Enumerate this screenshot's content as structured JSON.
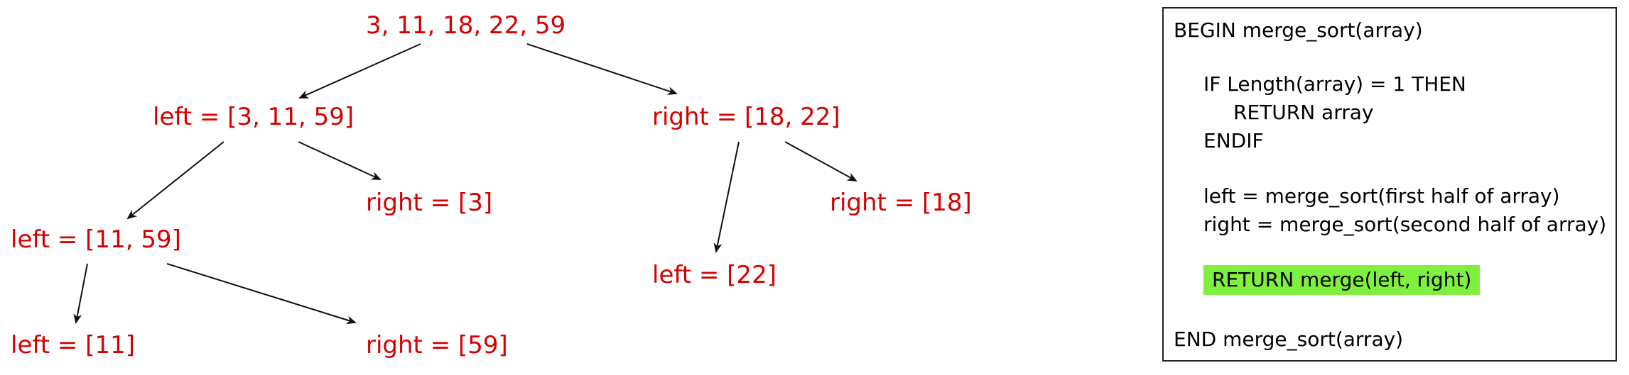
{
  "tree": {
    "root": "3, 11, 18, 22, 59",
    "left": "left = [3, 11, 59]",
    "right": "right = [18, 22]",
    "left_right": "right = [3]",
    "left_left": "left = [11, 59]",
    "left_left_left": "left = [11]",
    "left_left_right": "right = [59]",
    "right_right": "right = [18]",
    "right_left": "left = [22]"
  },
  "pseudocode": {
    "lines": [
      "BEGIN merge_sort(array)",
      "IF Length(array) = 1 THEN",
      "RETURN array",
      "ENDIF",
      "left = merge_sort(first half of array)",
      "right = merge_sort(second half of array)",
      "RETURN merge(left, right)",
      "END merge_sort(array)"
    ],
    "highlight_color": "#80f040"
  },
  "colors": {
    "node_text": "#d50000",
    "arrow": "#111111"
  }
}
